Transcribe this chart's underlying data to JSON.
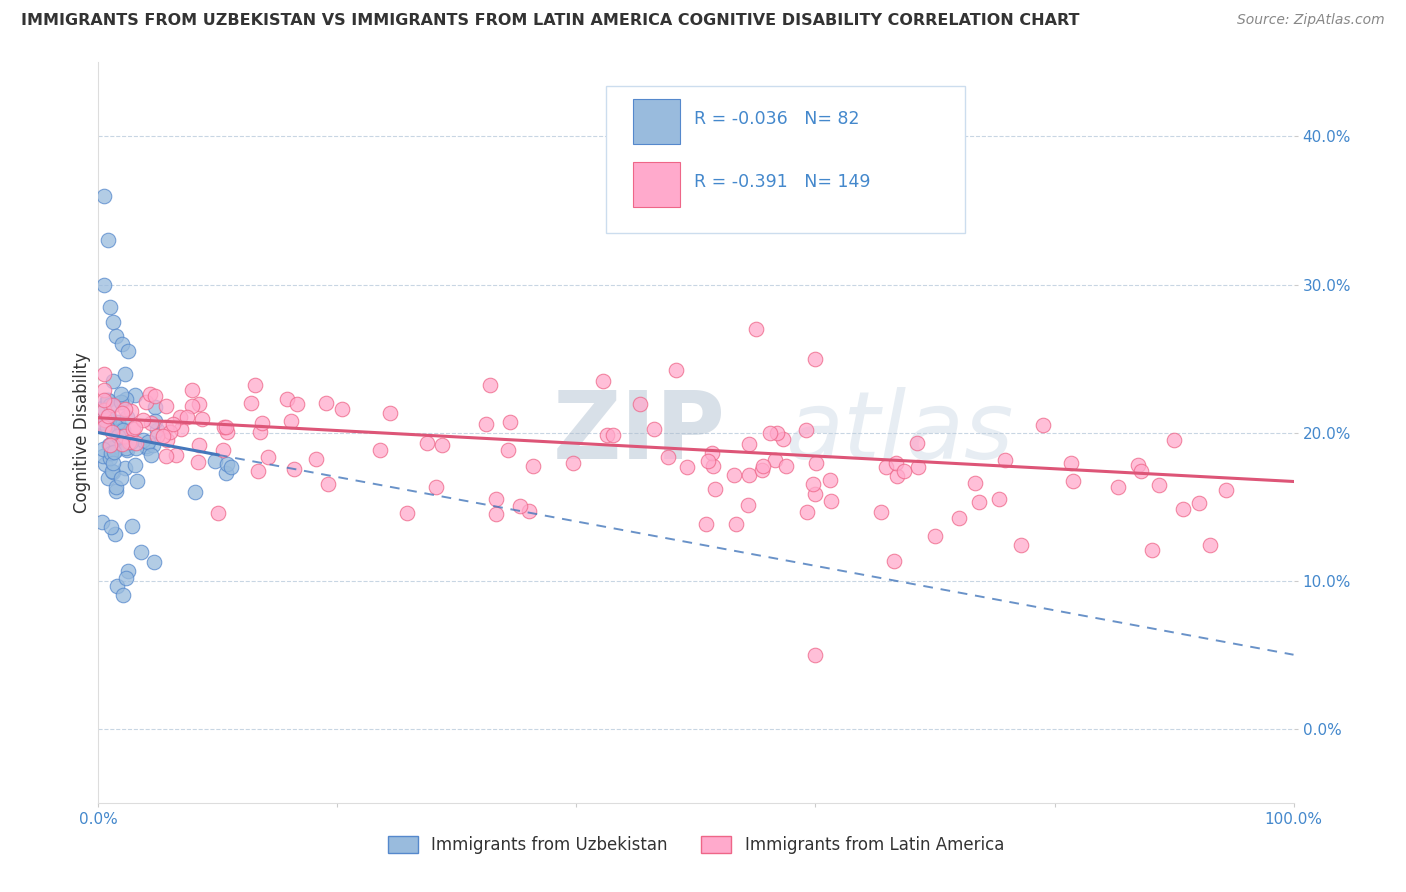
{
  "title": "IMMIGRANTS FROM UZBEKISTAN VS IMMIGRANTS FROM LATIN AMERICA COGNITIVE DISABILITY CORRELATION CHART",
  "source": "Source: ZipAtlas.com",
  "xlabel_blue": "Immigrants from Uzbekistan",
  "xlabel_pink": "Immigrants from Latin America",
  "ylabel": "Cognitive Disability",
  "R_blue": -0.036,
  "N_blue": 82,
  "R_pink": -0.391,
  "N_pink": 149,
  "color_blue": "#99BBDD",
  "color_blue_edge": "#5588CC",
  "color_pink": "#FFAACC",
  "color_pink_edge": "#EE6688",
  "color_blue_line": "#4477BB",
  "color_pink_line": "#DD5577",
  "watermark": "ZIPatlas",
  "watermark_color_1": "#AABBCC",
  "watermark_color_2": "#99BBCC",
  "xlim": [
    0.0,
    1.0
  ],
  "ylim": [
    -0.05,
    0.45
  ],
  "yticks": [
    0.0,
    0.1,
    0.2,
    0.3,
    0.4
  ],
  "ytick_labels": [
    "0.0%",
    "10.0%",
    "20.0%",
    "30.0%",
    "40.0%"
  ],
  "xtick_labels_show": [
    "0.0%",
    "100.0%"
  ],
  "xtick_positions_show": [
    0.0,
    1.0
  ],
  "tick_color": "#4488CC",
  "grid_color": "#BBCCDD",
  "bg_color": "#FFFFFF",
  "title_color": "#333333",
  "source_color": "#888888",
  "ylabel_color": "#333333",
  "legend_edge_color": "#CCDDEE"
}
